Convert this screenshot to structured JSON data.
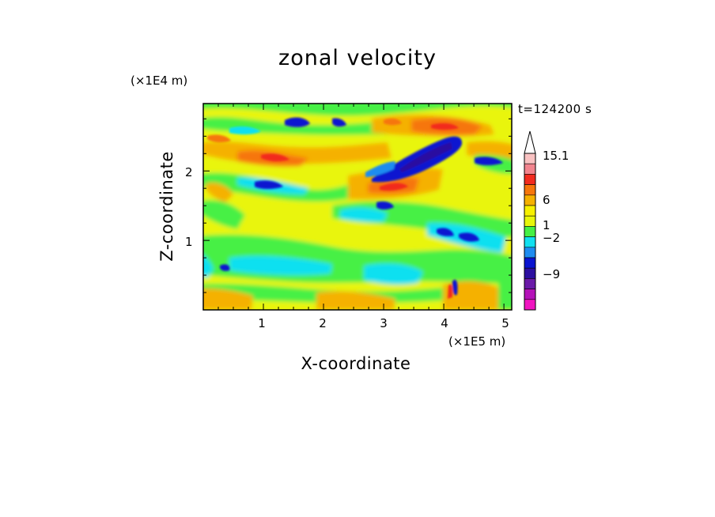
{
  "chart_data": {
    "type": "heatmap",
    "title": "zonal velocity",
    "xlabel": "X-coordinate",
    "ylabel": "Z-coordinate",
    "x_unit": "(×1E5 m)",
    "y_unit": "(×1E4 m)",
    "time_label": "t=124200 s",
    "xlim": [
      0,
      5.13
    ],
    "ylim": [
      0,
      2.97
    ],
    "x_ticks": [
      "1",
      "2",
      "3",
      "4",
      "5"
    ],
    "y_ticks": [
      "1",
      "2"
    ],
    "colorbar": {
      "labels": [
        "15.1",
        "6",
        "1",
        "−2",
        "−9"
      ],
      "colors": [
        "#ffffff",
        "#f9c2c2",
        "#f2848e",
        "#f22b1f",
        "#f6760c",
        "#f5b100",
        "#f7f000",
        "#e8f60b",
        "#46f045",
        "#11e0f0",
        "#1e8cf0",
        "#0a14d0",
        "#2c0fa0",
        "#6a1aa8",
        "#b412b8",
        "#f014c0"
      ],
      "extend": "max"
    }
  }
}
